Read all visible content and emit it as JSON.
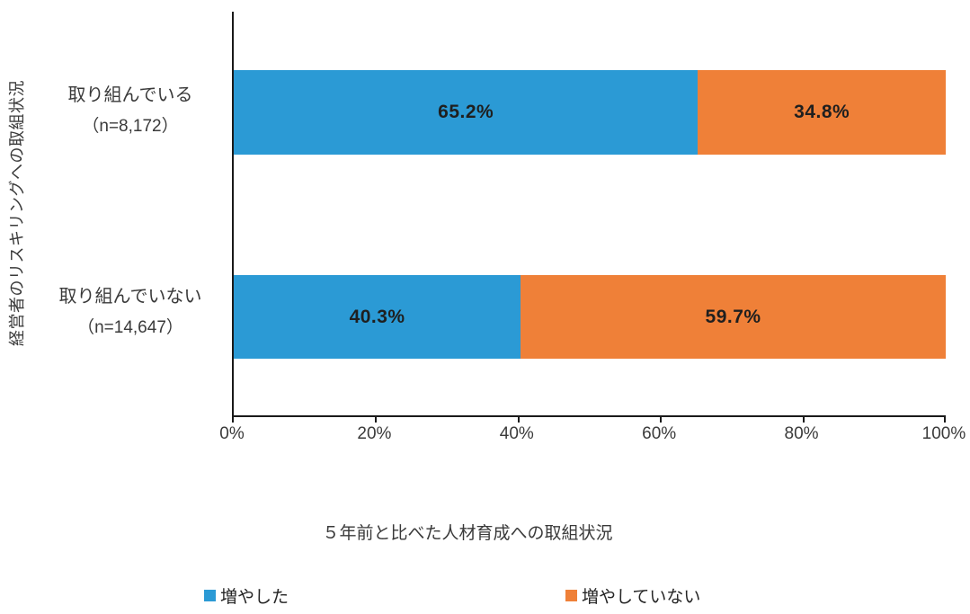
{
  "chart_data": {
    "type": "bar",
    "orientation": "horizontal",
    "stacked": true,
    "xlabel": "５年前と比べた人材育成への取組状況",
    "ylabel": "経営者のリスキリングへの取組状況",
    "xlim": [
      0,
      100
    ],
    "x_ticks": [
      "0%",
      "20%",
      "40%",
      "60%",
      "80%",
      "100%"
    ],
    "grid": false,
    "legend_position": "bottom",
    "colors": {
      "increased": "#2B9AD5",
      "not_increased": "#EF8038"
    },
    "series": [
      {
        "name": "増やした",
        "values": [
          65.2,
          40.3
        ]
      },
      {
        "name": "増やしていない",
        "values": [
          34.8,
          59.7
        ]
      }
    ],
    "rows": [
      {
        "category": "取り組んでいる",
        "n": "（n=8,172）",
        "increased": 65.2,
        "increased_label": "65.2%",
        "not_increased": 34.8,
        "not_increased_label": "34.8%"
      },
      {
        "category": "取り組んでいない",
        "n": "（n=14,647）",
        "increased": 40.3,
        "increased_label": "40.3%",
        "not_increased": 59.7,
        "not_increased_label": "59.7%"
      }
    ]
  },
  "legend": {
    "items": [
      {
        "label": "増やした",
        "color": "#2B9AD5"
      },
      {
        "label": "増やしていない",
        "color": "#EF8038"
      }
    ]
  }
}
